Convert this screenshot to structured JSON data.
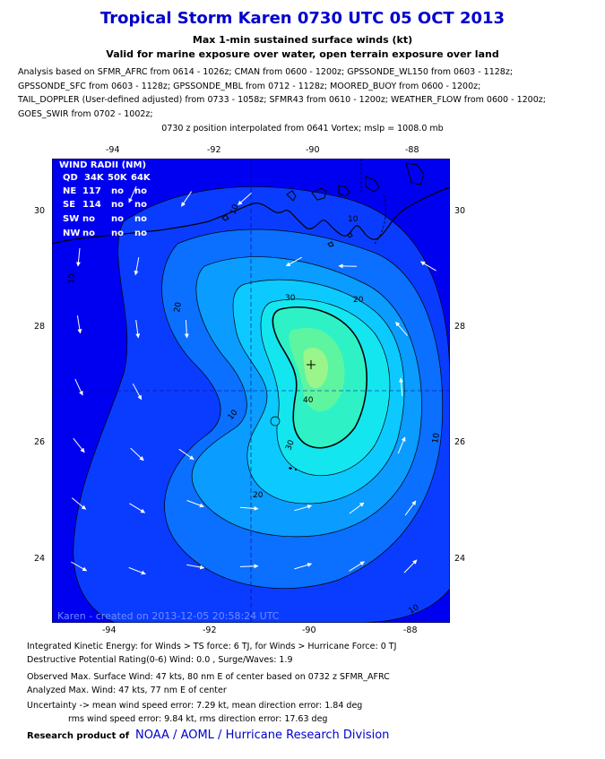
{
  "title": "Tropical Storm Karen 0730 UTC 05 OCT 2013",
  "subtitle1": "Max 1-min sustained surface winds (kt)",
  "subtitle2": "Valid for marine exposure over water, open terrain exposure over land",
  "analysis_lines": [
    "Analysis based on SFMR_AFRC from 0614 - 1026z; CMAN from 0600 - 1200z; GPSSONDE_WL150 from 0603 - 1128z;",
    "GPSSONDE_SFC from 0603 - 1128z; GPSSONDE_MBL from 0712 - 1128z; MOORED_BUOY from 0600 - 1200z;",
    "TAIL_DOPPLER (User-defined adjusted) from 0733 - 1058z; SFMR43 from 0610 - 1200z; WEATHER_FLOW from 0600 - 1200z;",
    "GOES_SWIR from 0702 - 1002z;"
  ],
  "position_note": "0730 z position interpolated from 0641 Vortex; mslp = 1008.0 mb",
  "lon_ticks": [
    "-94",
    "-92",
    "-90",
    "-88"
  ],
  "lat_ticks": [
    "30",
    "28",
    "26",
    "24"
  ],
  "wind_radii": {
    "title": "WIND RADII (NM)",
    "header": [
      "QD",
      "34K",
      "50K",
      "64K"
    ],
    "rows": [
      [
        "NE",
        "117",
        "no",
        "no"
      ],
      [
        "SE",
        "114",
        "no",
        "no"
      ],
      [
        "SW",
        "no",
        "no",
        "no"
      ],
      [
        "NW",
        "no",
        "no",
        "no"
      ]
    ]
  },
  "contour_labels": [
    "10",
    "10",
    "20",
    "20",
    "20",
    "30",
    "30",
    "40",
    "10",
    "10",
    "10",
    "10"
  ],
  "map_credit": "Karen - created on 2013-12-05 20:58:24 UTC",
  "colors": {
    "title": "#0000cc",
    "bg_outer": "#0000f0",
    "level_10": "#0a3cff",
    "level_15": "#0b6fff",
    "level_20": "#0a9cff",
    "level_25": "#0ccaff",
    "level_30": "#14e6f0",
    "level_35": "#2ef2c6",
    "level_40": "#5df5a0",
    "level_45": "#9af58a"
  },
  "footer": {
    "ike": "Integrated Kinetic Energy: for Winds > TS force: 6 TJ, for Winds > Hurricane Force: 0 TJ",
    "dpr": "Destructive Potential Rating(0-6)   Wind: 0.0 , Surge/Waves: 1.9",
    "obs": "Observed Max. Surface Wind: 47 kts, 80 nm E of center based on 0732 z SFMR_AFRC",
    "ana": "Analyzed Max. Wind: 47 kts, 77 nm  E of center",
    "unc1": "Uncertainty -> mean wind speed error: 7.29 kt, mean direction error: 1.84 deg",
    "unc2": "rms wind speed error: 9.84 kt, rms direction error: 17.63 deg"
  },
  "credit": {
    "prefix": "Research product of",
    "org": "NOAA  /  AOML  /  Hurricane Research Division"
  }
}
